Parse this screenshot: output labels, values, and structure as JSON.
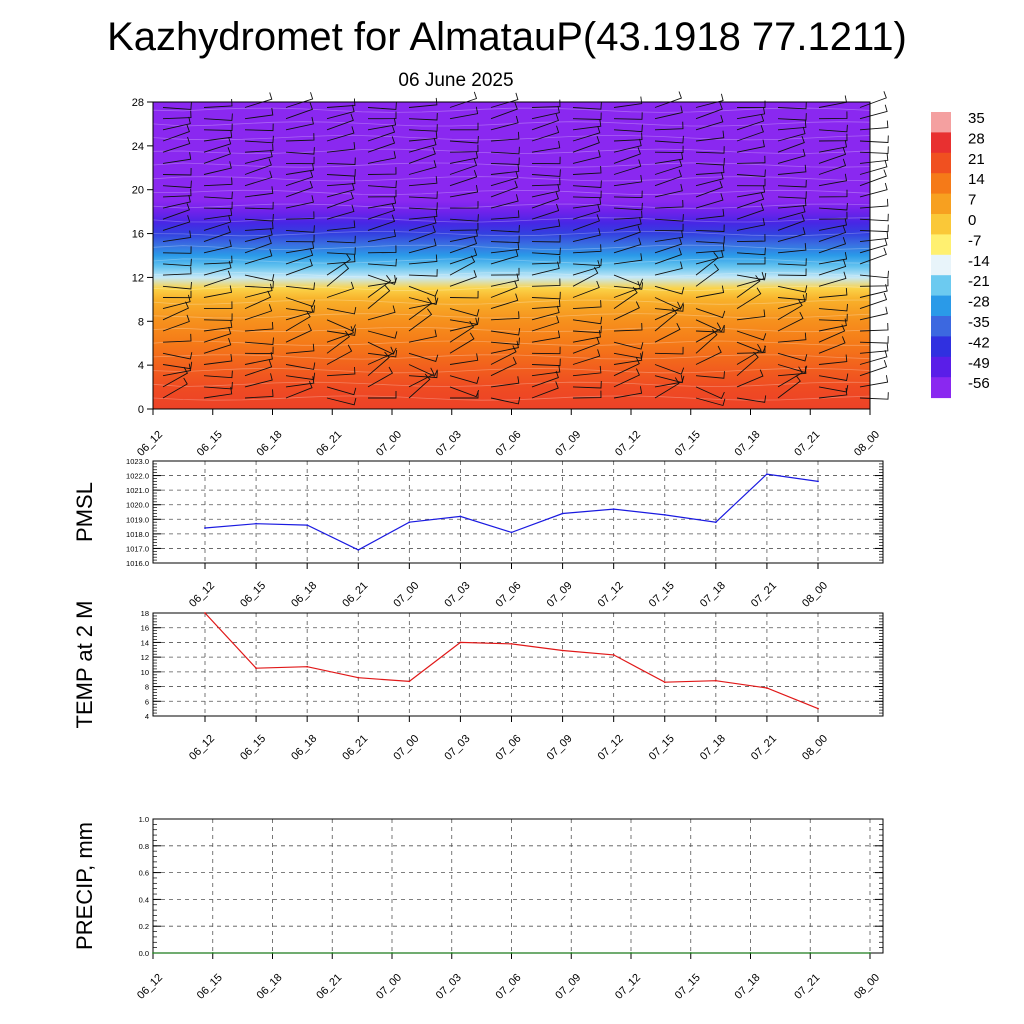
{
  "header": {
    "title": "Kazhydromet for AlmatauP(43.1918 77.1211)",
    "subtitle": "06 June 2025"
  },
  "time_labels": [
    "06_12",
    "06_15",
    "06_18",
    "06_21",
    "07_00",
    "07_03",
    "07_06",
    "07_09",
    "07_12",
    "07_15",
    "07_18",
    "07_21",
    "08_00"
  ],
  "colorbar": {
    "labels": [
      "35",
      "28",
      "21",
      "14",
      "7",
      "0",
      "-7",
      "-14",
      "-21",
      "-28",
      "-35",
      "-42",
      "-49",
      "-56"
    ],
    "colors": [
      "#f4a0a0",
      "#e83030",
      "#f05020",
      "#f57a18",
      "#f7a020",
      "#fac838",
      "#fff070",
      "#e8f4fa",
      "#6ccaf0",
      "#2a9ae8",
      "#3c68e0",
      "#3030e0",
      "#5a1ee8",
      "#8a28f0"
    ]
  },
  "chart_data": [
    {
      "type": "heatmap",
      "name": "Temperature cross-section with wind barbs",
      "x_categories": [
        "06_12",
        "06_15",
        "06_18",
        "06_21",
        "07_00",
        "07_03",
        "07_06",
        "07_09",
        "07_12",
        "07_15",
        "07_18",
        "07_21",
        "08_00"
      ],
      "yticks": [
        0,
        4,
        8,
        12,
        16,
        20,
        24,
        28
      ],
      "ylim": [
        0,
        28
      ],
      "color_levels": [
        35,
        28,
        21,
        14,
        7,
        0,
        -7,
        -14,
        -21,
        -28,
        -35,
        -42,
        -49,
        -56
      ],
      "levels_y": [
        0,
        2,
        4,
        6,
        8,
        10,
        11,
        12,
        13,
        14,
        15,
        16,
        17,
        18,
        19,
        20,
        21,
        22,
        24,
        26,
        28
      ],
      "levels_temp": [
        24,
        22,
        18,
        14,
        10,
        4,
        -2,
        -16,
        -22,
        -28,
        -34,
        -40,
        -46,
        -52,
        -56,
        -60,
        -58,
        -56,
        -56,
        -57,
        -58
      ],
      "wind_barbs": "yes"
    },
    {
      "type": "line",
      "ylabel": "PMSL",
      "x": [
        "06_12",
        "06_15",
        "06_18",
        "06_21",
        "07_00",
        "07_03",
        "07_06",
        "07_09",
        "07_12",
        "07_15",
        "07_18",
        "07_21",
        "08_00"
      ],
      "values": [
        1018.4,
        1018.7,
        1018.6,
        1016.9,
        1018.8,
        1019.2,
        1018.1,
        1019.4,
        1019.7,
        1019.3,
        1018.8,
        1022.1,
        1021.6
      ],
      "ylim": [
        1016.0,
        1023.0
      ],
      "yticks": [
        "1016.0",
        "1017.0",
        "1018.0",
        "1019.0",
        "1020.0",
        "1021.0",
        "1022.0",
        "1023.0"
      ],
      "color": "#1a1ae0"
    },
    {
      "type": "line",
      "ylabel": "TEMP at 2 M",
      "x": [
        "06_12",
        "06_15",
        "06_18",
        "06_21",
        "07_00",
        "07_03",
        "07_06",
        "07_09",
        "07_12",
        "07_15",
        "07_18",
        "07_21",
        "08_00"
      ],
      "values": [
        18.0,
        10.5,
        10.7,
        9.2,
        8.7,
        14.0,
        13.8,
        12.9,
        12.3,
        8.6,
        8.8,
        7.8,
        5.0
      ],
      "ylim": [
        4,
        18
      ],
      "yticks": [
        "4",
        "6",
        "8",
        "10",
        "12",
        "14",
        "16",
        "18"
      ],
      "color": "#e01818"
    },
    {
      "type": "line",
      "ylabel": "PRECIP, mm",
      "x": [
        "06_12",
        "06_15",
        "06_18",
        "06_21",
        "07_00",
        "07_03",
        "07_06",
        "07_09",
        "07_12",
        "07_15",
        "07_18",
        "07_21",
        "08_00"
      ],
      "values": [
        0,
        0,
        0,
        0,
        0,
        0,
        0,
        0,
        0,
        0,
        0,
        0,
        0
      ],
      "ylim": [
        0.0,
        1.0
      ],
      "yticks": [
        "0.0",
        "0.2",
        "0.4",
        "0.6",
        "0.8",
        "1.0"
      ],
      "color": "#1a7a1a"
    }
  ]
}
